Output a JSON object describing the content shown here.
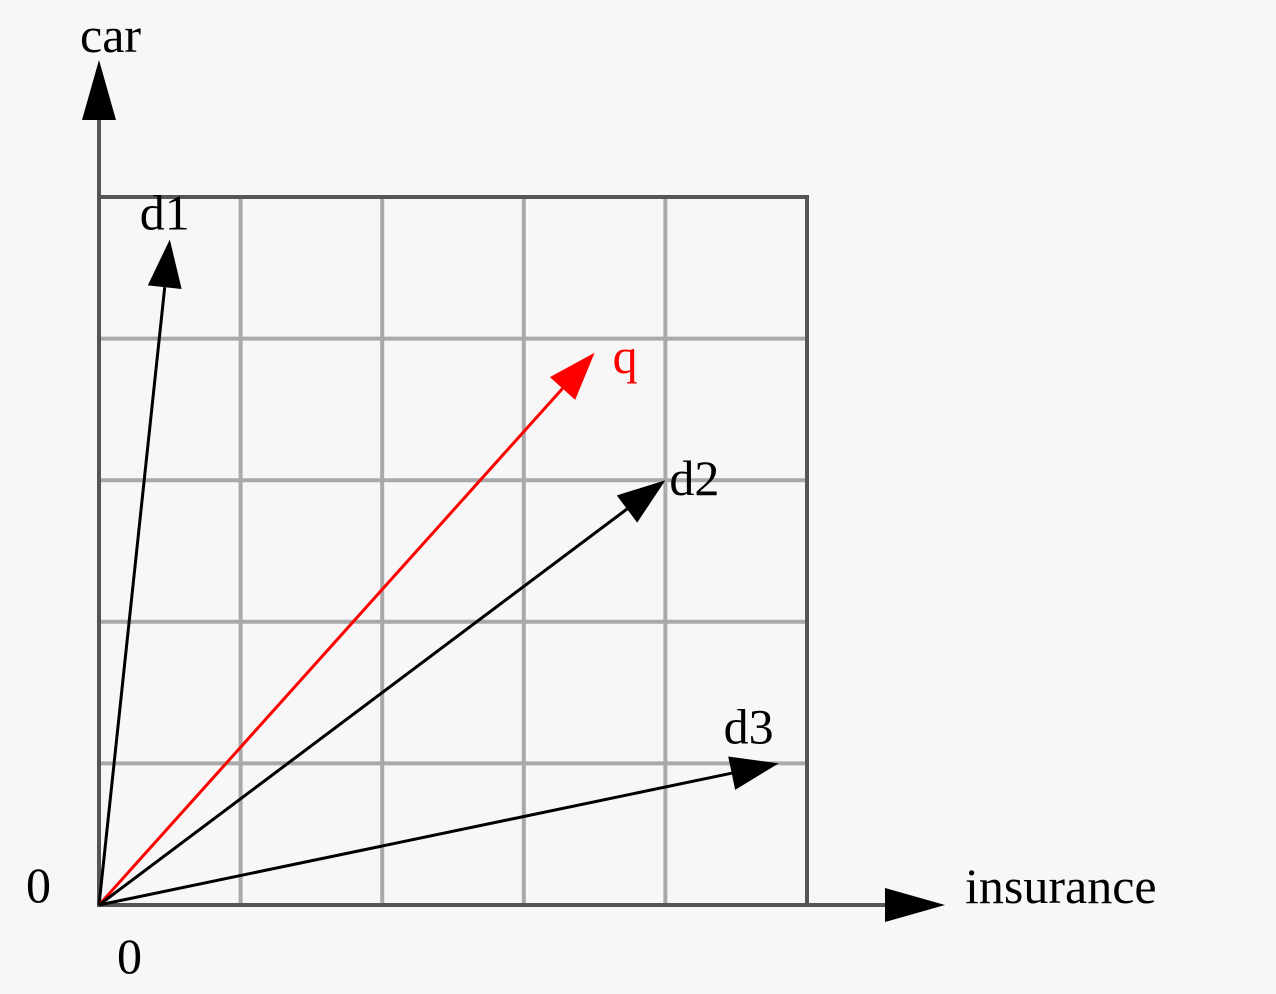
{
  "axes": {
    "x_label": "insurance",
    "y_label": "car",
    "x_origin_label": "0",
    "y_origin_label": "0"
  },
  "grid": {
    "cells_x": 5,
    "cells_y": 5
  },
  "vectors": [
    {
      "name": "d1",
      "label": "d1",
      "x": 0.5,
      "y": 4.7,
      "color": "#000000"
    },
    {
      "name": "q",
      "label": "q",
      "x": 3.5,
      "y": 3.9,
      "color": "#ff0000"
    },
    {
      "name": "d2",
      "label": "d2",
      "x": 4.0,
      "y": 3.0,
      "color": "#000000"
    },
    {
      "name": "d3",
      "label": "d3",
      "x": 4.8,
      "y": 1.0,
      "color": "#000000"
    }
  ],
  "colors": {
    "grid": "#a9a9a9",
    "axis": "#555555",
    "background": "#f7f7f7"
  }
}
